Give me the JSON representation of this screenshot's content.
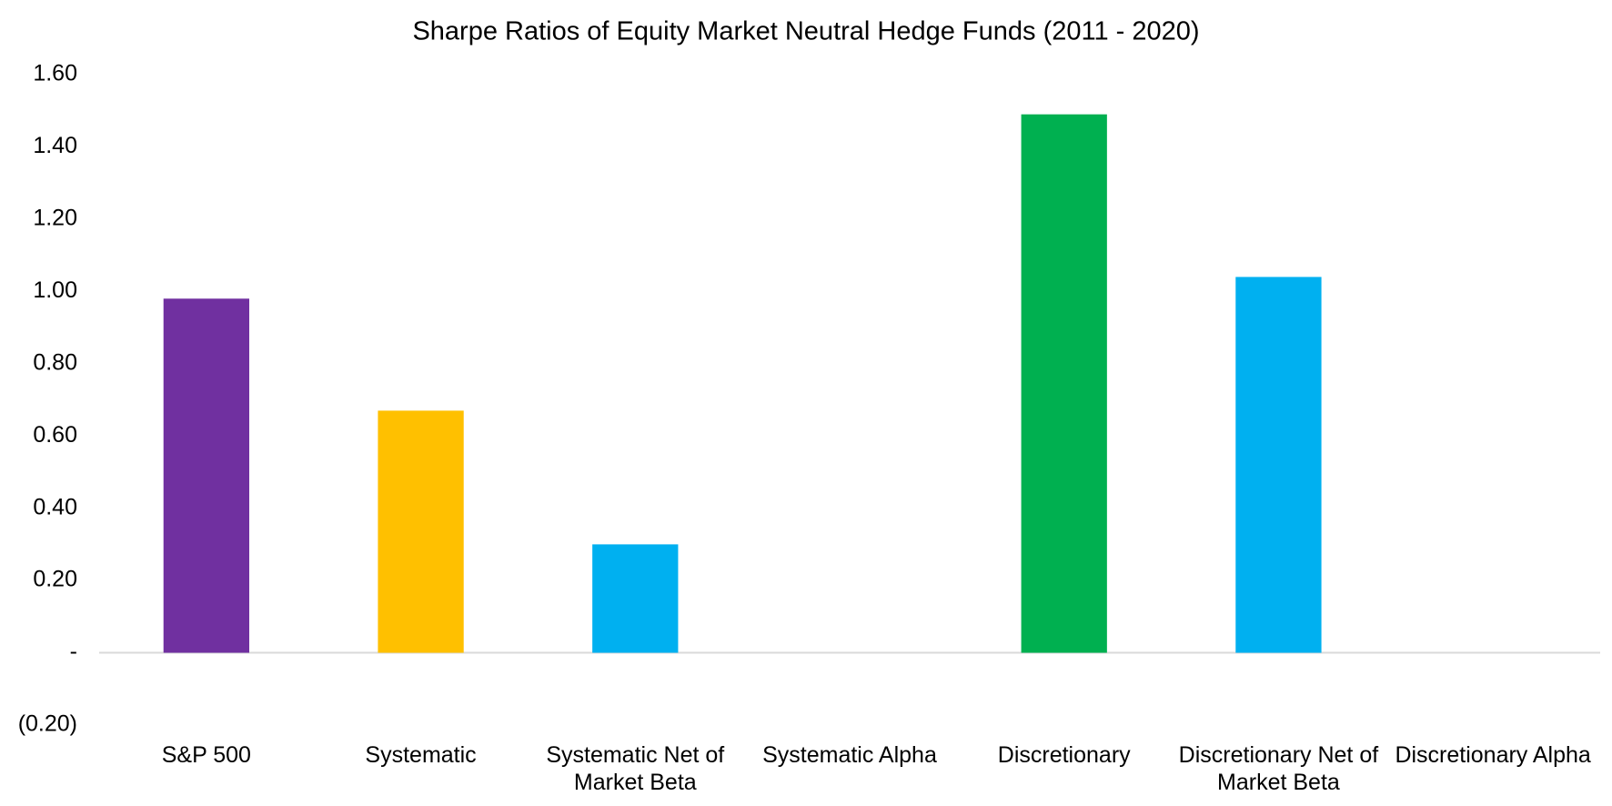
{
  "chart_data": {
    "type": "bar",
    "title": "Sharpe Ratios of Equity Market Neutral Hedge Funds (2011 - 2020)",
    "categories": [
      "S&P 500",
      "Systematic",
      "Systematic Net of Market Beta",
      "Systematic Alpha",
      "Discretionary",
      "Discretionary Net of Market Beta",
      "Discretionary Alpha"
    ],
    "values": [
      0.98,
      0.67,
      0.3,
      0,
      1.49,
      1.04,
      0
    ],
    "colors": [
      "#7030a0",
      "#ffc000",
      "#00b0f0",
      "#00b0f0",
      "#00b050",
      "#00b0f0",
      "#00b0f0"
    ],
    "ylim": [
      -0.2,
      1.6
    ],
    "yticks": [
      {
        "value": -0.2,
        "label": "(0.20)"
      },
      {
        "value": 0,
        "label": "-"
      },
      {
        "value": 0.2,
        "label": "0.20"
      },
      {
        "value": 0.4,
        "label": "0.40"
      },
      {
        "value": 0.6,
        "label": "0.60"
      },
      {
        "value": 0.8,
        "label": "0.80"
      },
      {
        "value": 1.0,
        "label": "1.00"
      },
      {
        "value": 1.2,
        "label": "1.20"
      },
      {
        "value": 1.4,
        "label": "1.40"
      },
      {
        "value": 1.6,
        "label": "1.60"
      }
    ],
    "grid": false
  }
}
